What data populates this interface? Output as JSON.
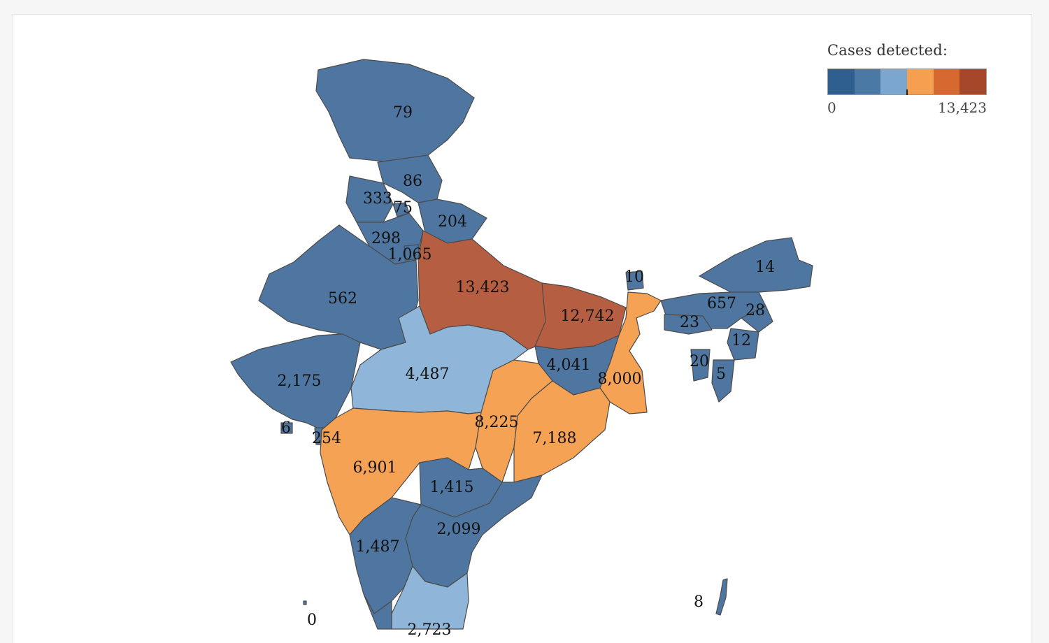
{
  "legend": {
    "title": "Cases detected:",
    "min_label": "0",
    "max_label": "13,423",
    "colors": [
      "#2f5f8f",
      "#4a79a6",
      "#7aa6cf",
      "#f5a050",
      "#d5692f",
      "#a6472a"
    ]
  },
  "palette": {
    "dark_blue": "#4f76a0",
    "light_blue": "#8fb6d9",
    "orange": "#f5a255",
    "rust": "#b65e42",
    "outline": "#4b4b4b"
  },
  "regions": [
    {
      "value": "79",
      "fill": "dark_blue"
    },
    {
      "value": "86",
      "fill": "dark_blue"
    },
    {
      "value": "333",
      "fill": "dark_blue"
    },
    {
      "value": "75",
      "fill": "dark_blue"
    },
    {
      "value": "204",
      "fill": "dark_blue"
    },
    {
      "value": "298",
      "fill": "dark_blue"
    },
    {
      "value": "1,065",
      "fill": "dark_blue"
    },
    {
      "value": "562",
      "fill": "dark_blue"
    },
    {
      "value": "13,423",
      "fill": "rust"
    },
    {
      "value": "12,742",
      "fill": "rust"
    },
    {
      "value": "10",
      "fill": "dark_blue"
    },
    {
      "value": "14",
      "fill": "dark_blue"
    },
    {
      "value": "657",
      "fill": "dark_blue"
    },
    {
      "value": "28",
      "fill": "dark_blue"
    },
    {
      "value": "23",
      "fill": "dark_blue"
    },
    {
      "value": "12",
      "fill": "dark_blue"
    },
    {
      "value": "20",
      "fill": "dark_blue"
    },
    {
      "value": "5",
      "fill": "dark_blue"
    },
    {
      "value": "4,487",
      "fill": "light_blue"
    },
    {
      "value": "4,041",
      "fill": "dark_blue"
    },
    {
      "value": "8,000",
      "fill": "orange"
    },
    {
      "value": "2,175",
      "fill": "dark_blue"
    },
    {
      "value": "6",
      "fill": "dark_blue"
    },
    {
      "value": "254",
      "fill": "dark_blue"
    },
    {
      "value": "8,225",
      "fill": "orange"
    },
    {
      "value": "7,188",
      "fill": "orange"
    },
    {
      "value": "6,901",
      "fill": "orange"
    },
    {
      "value": "1,415",
      "fill": "dark_blue"
    },
    {
      "value": "2,099",
      "fill": "dark_blue"
    },
    {
      "value": "1,487",
      "fill": "dark_blue"
    },
    {
      "value": "8",
      "fill": "dark_blue"
    },
    {
      "value": "0",
      "fill": "dark_blue"
    },
    {
      "value": "2,723",
      "fill": "light_blue"
    }
  ]
}
